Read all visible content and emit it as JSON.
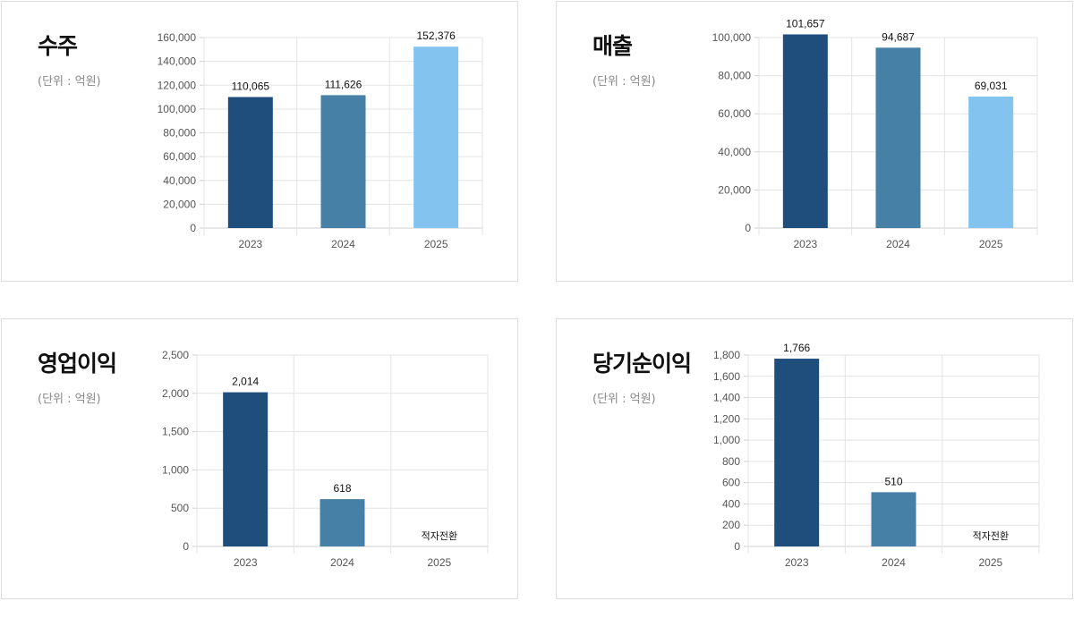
{
  "unit_label": "(단위 : 억원)",
  "colors": {
    "bar_2023": "#1f4e7d",
    "bar_2024": "#4680a6",
    "bar_2025": "#82c3ef",
    "grid": "#e3e3e3",
    "axis": "#cfcfcf"
  },
  "chart_data": [
    {
      "type": "bar",
      "title": "수주",
      "categories": [
        "2023",
        "2024",
        "2025"
      ],
      "values": [
        110065,
        111626,
        152376
      ],
      "value_labels": [
        "110,065",
        "111,626",
        "152,376"
      ],
      "ylim": [
        0,
        160000
      ],
      "yticks": [
        0,
        20000,
        40000,
        60000,
        80000,
        100000,
        120000,
        140000,
        160000
      ],
      "ytick_labels": [
        "0",
        "20,000",
        "40,000",
        "60,000",
        "80,000",
        "100,000",
        "120,000",
        "140,000",
        "160,000"
      ],
      "grid": true
    },
    {
      "type": "bar",
      "title": "매출",
      "categories": [
        "2023",
        "2024",
        "2025"
      ],
      "values": [
        101657,
        94687,
        69031
      ],
      "value_labels": [
        "101,657",
        "94,687",
        "69,031"
      ],
      "ylim": [
        0,
        100000
      ],
      "yticks": [
        0,
        20000,
        40000,
        60000,
        80000,
        100000
      ],
      "ytick_labels": [
        "0",
        "20,000",
        "40,000",
        "60,000",
        "80,000",
        "100,000"
      ],
      "grid": true
    },
    {
      "type": "bar",
      "title": "영업이익",
      "categories": [
        "2023",
        "2024",
        "2025"
      ],
      "values": [
        2014,
        618,
        null
      ],
      "value_labels": [
        "2,014",
        "618",
        "적자전환"
      ],
      "ylim": [
        0,
        2500
      ],
      "yticks": [
        0,
        500,
        1000,
        1500,
        2000,
        2500
      ],
      "ytick_labels": [
        "0",
        "500",
        "1,000",
        "1,500",
        "2,000",
        "2,500"
      ],
      "grid": true
    },
    {
      "type": "bar",
      "title": "당기순이익",
      "categories": [
        "2023",
        "2024",
        "2025"
      ],
      "values": [
        1766,
        510,
        null
      ],
      "value_labels": [
        "1,766",
        "510",
        "적자전환"
      ],
      "ylim": [
        0,
        1800
      ],
      "yticks": [
        0,
        200,
        400,
        600,
        800,
        1000,
        1200,
        1400,
        1600,
        1800
      ],
      "ytick_labels": [
        "0",
        "200",
        "400",
        "600",
        "800",
        "1,000",
        "1,200",
        "1,400",
        "1,600",
        "1,800"
      ],
      "grid": true
    }
  ]
}
